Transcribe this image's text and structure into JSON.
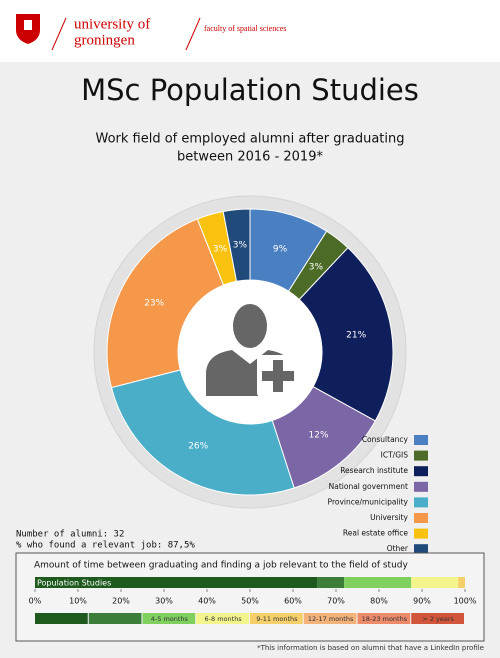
{
  "header": {
    "university": [
      "university of",
      "groningen"
    ],
    "faculty": "faculty of spatial sciences"
  },
  "title": "MSc Population Studies",
  "chart_data": [
    {
      "type": "pie",
      "donut": true,
      "title": [
        "Work field of employed alumni after graduating",
        "between 2016 - 2019*"
      ],
      "categories": [
        "Consultancy",
        "ICT/GIS",
        "Research institute",
        "National government",
        "Province/municipality",
        "University",
        "Real estate office",
        "Other"
      ],
      "values": [
        9,
        3,
        21,
        12,
        26,
        23,
        3,
        3
      ],
      "value_labels": [
        "9%",
        "3%",
        "21%",
        "12%",
        "26%",
        "23%",
        "3%",
        "3%"
      ],
      "colors": [
        "#4a7fc1",
        "#4c6b27",
        "#0f1f5c",
        "#7b66a6",
        "#4aaec9",
        "#f5984a",
        "#f8c20f",
        "#1f4a7a"
      ]
    },
    {
      "type": "bar",
      "orientation": "horizontal",
      "stacked": true,
      "title": "Amount of time between graduating and finding a job relevant to the field of study",
      "categories": [
        "Population Studies"
      ],
      "series": [
        {
          "name": null,
          "color": "#1e5a1e",
          "values": [
            65.6
          ]
        },
        {
          "name": null,
          "color": "#3d7d3a",
          "values": [
            6.3
          ]
        },
        {
          "name": "4-5 months",
          "color": "#7fd05f",
          "values": [
            15.6
          ]
        },
        {
          "name": "6-8 months",
          "color": "#f3f58c",
          "values": [
            10.9
          ]
        },
        {
          "name": "9-11 months",
          "color": "#f5cf6a",
          "values": [
            1.6
          ]
        },
        {
          "name": "12-17 months",
          "color": "#f3b27a",
          "values": [
            0
          ]
        },
        {
          "name": "18-23 months",
          "color": "#ec8a6a",
          "values": [
            0
          ]
        },
        {
          "name": "> 2 years",
          "color": "#d0553a",
          "values": [
            0
          ]
        }
      ],
      "xlim": [
        0,
        100
      ],
      "xticks": [
        {
          "value": 0,
          "label": "0%"
        },
        {
          "value": 10,
          "label": "10%"
        },
        {
          "value": 20,
          "label": "20%"
        },
        {
          "value": 30,
          "label": "30%"
        },
        {
          "value": 40,
          "label": "40%"
        },
        {
          "value": 50,
          "label": "50%"
        },
        {
          "value": 60,
          "label": "60%"
        },
        {
          "value": 70,
          "label": "70%"
        },
        {
          "value": 80,
          "label": "80%"
        },
        {
          "value": 90,
          "label": "90%"
        },
        {
          "value": 100,
          "label": "100%"
        }
      ]
    }
  ],
  "stats": [
    "Number of alumni: 32",
    "% who found a relevant job: 87,5%"
  ],
  "footnote": "*This information is based on alumni that have a LinkedIn profile"
}
